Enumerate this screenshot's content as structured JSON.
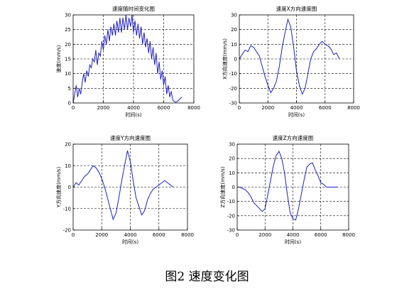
{
  "caption": "图2 速度变化图",
  "colors": {
    "line": "#1f1fbf",
    "axis": "#000000",
    "grid": "#000000"
  },
  "chart_data": [
    {
      "type": "line",
      "title": "速度随时间变化图",
      "xlabel": "时间(s)",
      "ylabel": "速度(mm/s)",
      "xlim": [
        0,
        8000
      ],
      "ylim": [
        0,
        30
      ],
      "xticks": [
        0,
        2000,
        4000,
        6000,
        8000
      ],
      "yticks": [
        0,
        5,
        10,
        15,
        20,
        25,
        30
      ],
      "grid": true,
      "x": [
        0,
        100,
        200,
        300,
        400,
        500,
        600,
        700,
        800,
        900,
        1000,
        1100,
        1200,
        1300,
        1400,
        1500,
        1600,
        1700,
        1800,
        1900,
        2000,
        2100,
        2200,
        2300,
        2400,
        2500,
        2600,
        2700,
        2800,
        2900,
        3000,
        3100,
        3200,
        3300,
        3400,
        3500,
        3600,
        3700,
        3800,
        3900,
        4000,
        4100,
        4200,
        4300,
        4400,
        4500,
        4600,
        4700,
        4800,
        4900,
        5000,
        5100,
        5200,
        5300,
        5400,
        5500,
        5600,
        5700,
        5800,
        5900,
        6000,
        6100,
        6200,
        6300,
        6400,
        6500,
        6600,
        6700,
        6800,
        6900,
        7000,
        7100,
        7200
      ],
      "y": [
        0,
        3,
        6,
        2,
        5,
        3,
        7,
        10,
        7,
        11,
        9,
        13,
        12,
        15,
        14,
        18,
        13,
        17,
        16,
        21,
        18,
        23,
        20,
        25,
        21,
        26,
        23,
        27,
        23,
        28,
        24,
        29,
        24,
        29,
        25,
        30,
        25,
        29,
        26,
        30,
        24,
        28,
        23,
        27,
        22,
        26,
        20,
        24,
        19,
        22,
        17,
        21,
        15,
        19,
        13,
        17,
        10,
        14,
        8,
        11,
        6,
        9,
        3,
        6,
        2,
        4,
        1,
        0.5,
        0.3,
        0.5,
        1,
        1.5,
        2
      ]
    },
    {
      "type": "line",
      "title": "速度X方向速度图",
      "xlabel": "时间(s)",
      "ylabel": "X方向速度(mm/s)",
      "xlim": [
        0,
        8000
      ],
      "ylim": [
        -30,
        30
      ],
      "xticks": [
        0,
        2000,
        4000,
        6000,
        8000
      ],
      "yticks": [
        -30,
        -20,
        -10,
        0,
        10,
        20,
        30
      ],
      "grid": true,
      "x": [
        0,
        200,
        400,
        600,
        800,
        1000,
        1200,
        1400,
        1600,
        1800,
        2000,
        2200,
        2400,
        2600,
        2800,
        3000,
        3200,
        3400,
        3600,
        3800,
        4000,
        4200,
        4400,
        4600,
        4800,
        5000,
        5200,
        5400,
        5600,
        5800,
        6000,
        6200,
        6400,
        6600,
        6800,
        7000
      ],
      "y": [
        0,
        3,
        6,
        5,
        9,
        8,
        5,
        2,
        -5,
        -12,
        -18,
        -23,
        -20,
        -15,
        -5,
        8,
        18,
        27,
        22,
        8,
        -8,
        -18,
        -24,
        -20,
        -10,
        0,
        5,
        7,
        10,
        12,
        10,
        9,
        7,
        3,
        4,
        0
      ]
    },
    {
      "type": "line",
      "title": "速度Y方向速度图",
      "xlabel": "时间(s)",
      "ylabel": "Y方向速度(mm/s)",
      "xlim": [
        0,
        8000
      ],
      "ylim": [
        -20,
        20
      ],
      "xticks": [
        0,
        2000,
        4000,
        6000,
        8000
      ],
      "yticks": [
        -20,
        -10,
        0,
        10,
        20
      ],
      "grid": true,
      "x": [
        0,
        200,
        400,
        600,
        800,
        1000,
        1200,
        1400,
        1600,
        1800,
        2000,
        2200,
        2400,
        2600,
        2800,
        3000,
        3200,
        3400,
        3600,
        3800,
        4000,
        4200,
        4400,
        4600,
        4800,
        5000,
        5200,
        5400,
        5600,
        5800,
        6000,
        6200,
        6400,
        6600,
        6800,
        7000
      ],
      "y": [
        0,
        2,
        1,
        3,
        5,
        6,
        8,
        10,
        9,
        7,
        4,
        0,
        -5,
        -10,
        -15,
        -12,
        -5,
        3,
        10,
        17,
        12,
        3,
        -5,
        -9,
        -13,
        -11,
        -6,
        -3,
        -1,
        0,
        1,
        2,
        3,
        2,
        1,
        0
      ]
    },
    {
      "type": "line",
      "title": "速度Z方向速度图",
      "xlabel": "时间(s)",
      "ylabel": "Z方向速度(mm/s)",
      "xlim": [
        0,
        8000
      ],
      "ylim": [
        -30,
        30
      ],
      "xticks": [
        0,
        2000,
        4000,
        6000,
        8000
      ],
      "yticks": [
        -30,
        -20,
        -10,
        0,
        10,
        20,
        30
      ],
      "grid": true,
      "x": [
        0,
        200,
        400,
        600,
        800,
        1000,
        1200,
        1400,
        1600,
        1800,
        2000,
        2200,
        2400,
        2600,
        2800,
        3000,
        3200,
        3400,
        3600,
        3800,
        4000,
        4200,
        4400,
        4600,
        4800,
        5000,
        5200,
        5400,
        5600,
        5800,
        6000,
        6200,
        6400,
        6600,
        6800,
        7000,
        7200
      ],
      "y": [
        0,
        0,
        -1,
        -2,
        -4,
        -7,
        -11,
        -13,
        -15,
        -17,
        -15,
        -5,
        5,
        15,
        22,
        25,
        20,
        10,
        -5,
        -18,
        -22,
        -23,
        -15,
        -5,
        5,
        14,
        16,
        17,
        12,
        8,
        3,
        2,
        0,
        0,
        0,
        0,
        0
      ]
    }
  ]
}
